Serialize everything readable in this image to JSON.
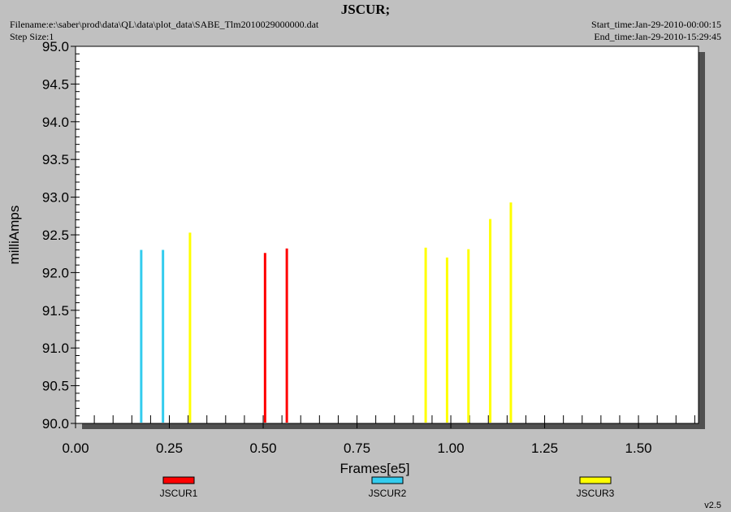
{
  "header": {
    "title": "JSCUR;",
    "filename": "Filename:e:\\saber\\prod\\data\\QL\\data\\plot_data\\SABE_Tlm2010029000000.dat",
    "step_size": "Step Size:1",
    "start_time": "Start_time:Jan-29-2010-00:00:15",
    "end_time": "End_time:Jan-29-2010-15:29:45"
  },
  "footer": {
    "version": "v2.5"
  },
  "chart_data": {
    "type": "bar",
    "title": "JSCUR;",
    "xlabel": "Frames[e5]",
    "ylabel": "milliAmps",
    "xlim": [
      0.0,
      1.66
    ],
    "ylim": [
      90.0,
      95.0
    ],
    "xticks": [
      "0.00",
      "0.25",
      "0.50",
      "0.75",
      "1.00",
      "1.25",
      "1.50"
    ],
    "yticks": [
      "90.0",
      "90.5",
      "91.0",
      "91.5",
      "92.0",
      "92.5",
      "93.0",
      "93.5",
      "94.0",
      "94.5",
      "95.0"
    ],
    "grid": false,
    "legend_position": "bottom",
    "series": [
      {
        "name": "JSCUR1",
        "color": "#ff0000",
        "x": [
          0.505,
          0.563
        ],
        "y": [
          92.26,
          92.32
        ]
      },
      {
        "name": "JSCUR2",
        "color": "#33ccee",
        "x": [
          0.175,
          0.233
        ],
        "y": [
          92.3,
          92.3
        ]
      },
      {
        "name": "JSCUR3",
        "color": "#ffff00",
        "x": [
          0.305,
          0.933,
          0.99,
          1.047,
          1.105,
          1.16
        ],
        "y": [
          92.53,
          92.33,
          92.2,
          92.31,
          92.71,
          92.93
        ]
      }
    ]
  }
}
